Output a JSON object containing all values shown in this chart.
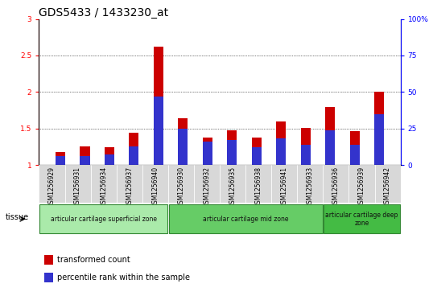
{
  "title": "GDS5433 / 1433230_at",
  "samples": [
    "GSM1256929",
    "GSM1256931",
    "GSM1256934",
    "GSM1256937",
    "GSM1256940",
    "GSM1256930",
    "GSM1256932",
    "GSM1256935",
    "GSM1256938",
    "GSM1256941",
    "GSM1256933",
    "GSM1256936",
    "GSM1256939",
    "GSM1256942"
  ],
  "transformed_count": [
    1.18,
    1.25,
    1.24,
    1.44,
    2.62,
    1.64,
    1.38,
    1.47,
    1.38,
    1.6,
    1.51,
    1.79,
    1.46,
    2.0
  ],
  "percentile_rank_pct": [
    6,
    6,
    7,
    13,
    47,
    25,
    16,
    17,
    12,
    18,
    14,
    24,
    14,
    35
  ],
  "bar_bottom": 1.0,
  "red_color": "#cc0000",
  "blue_color": "#3333cc",
  "ylim_left": [
    1.0,
    3.0
  ],
  "ylim_right": [
    0,
    100
  ],
  "yticks_left": [
    1.0,
    1.5,
    2.0,
    2.5,
    3.0
  ],
  "ytick_labels_left": [
    "1",
    "1.5",
    "2",
    "2.5",
    "3"
  ],
  "yticks_right": [
    0,
    25,
    50,
    75,
    100
  ],
  "ytick_labels_right": [
    "0",
    "25",
    "50",
    "75",
    "100%"
  ],
  "groups": [
    {
      "label": "articular cartilage superficial zone",
      "start": 0,
      "end": 5,
      "color": "#aaeaaa"
    },
    {
      "label": "articular cartilage mid zone",
      "start": 5,
      "end": 11,
      "color": "#66cc66"
    },
    {
      "label": "articular cartilage deep\nzone",
      "start": 11,
      "end": 14,
      "color": "#44bb44"
    }
  ],
  "tissue_label": "tissue",
  "legend_entries": [
    "transformed count",
    "percentile rank within the sample"
  ],
  "legend_colors": [
    "#cc0000",
    "#3333cc"
  ],
  "plot_bg": "#ffffff",
  "title_fontsize": 10,
  "tick_fontsize": 6.5,
  "bar_width": 0.4
}
